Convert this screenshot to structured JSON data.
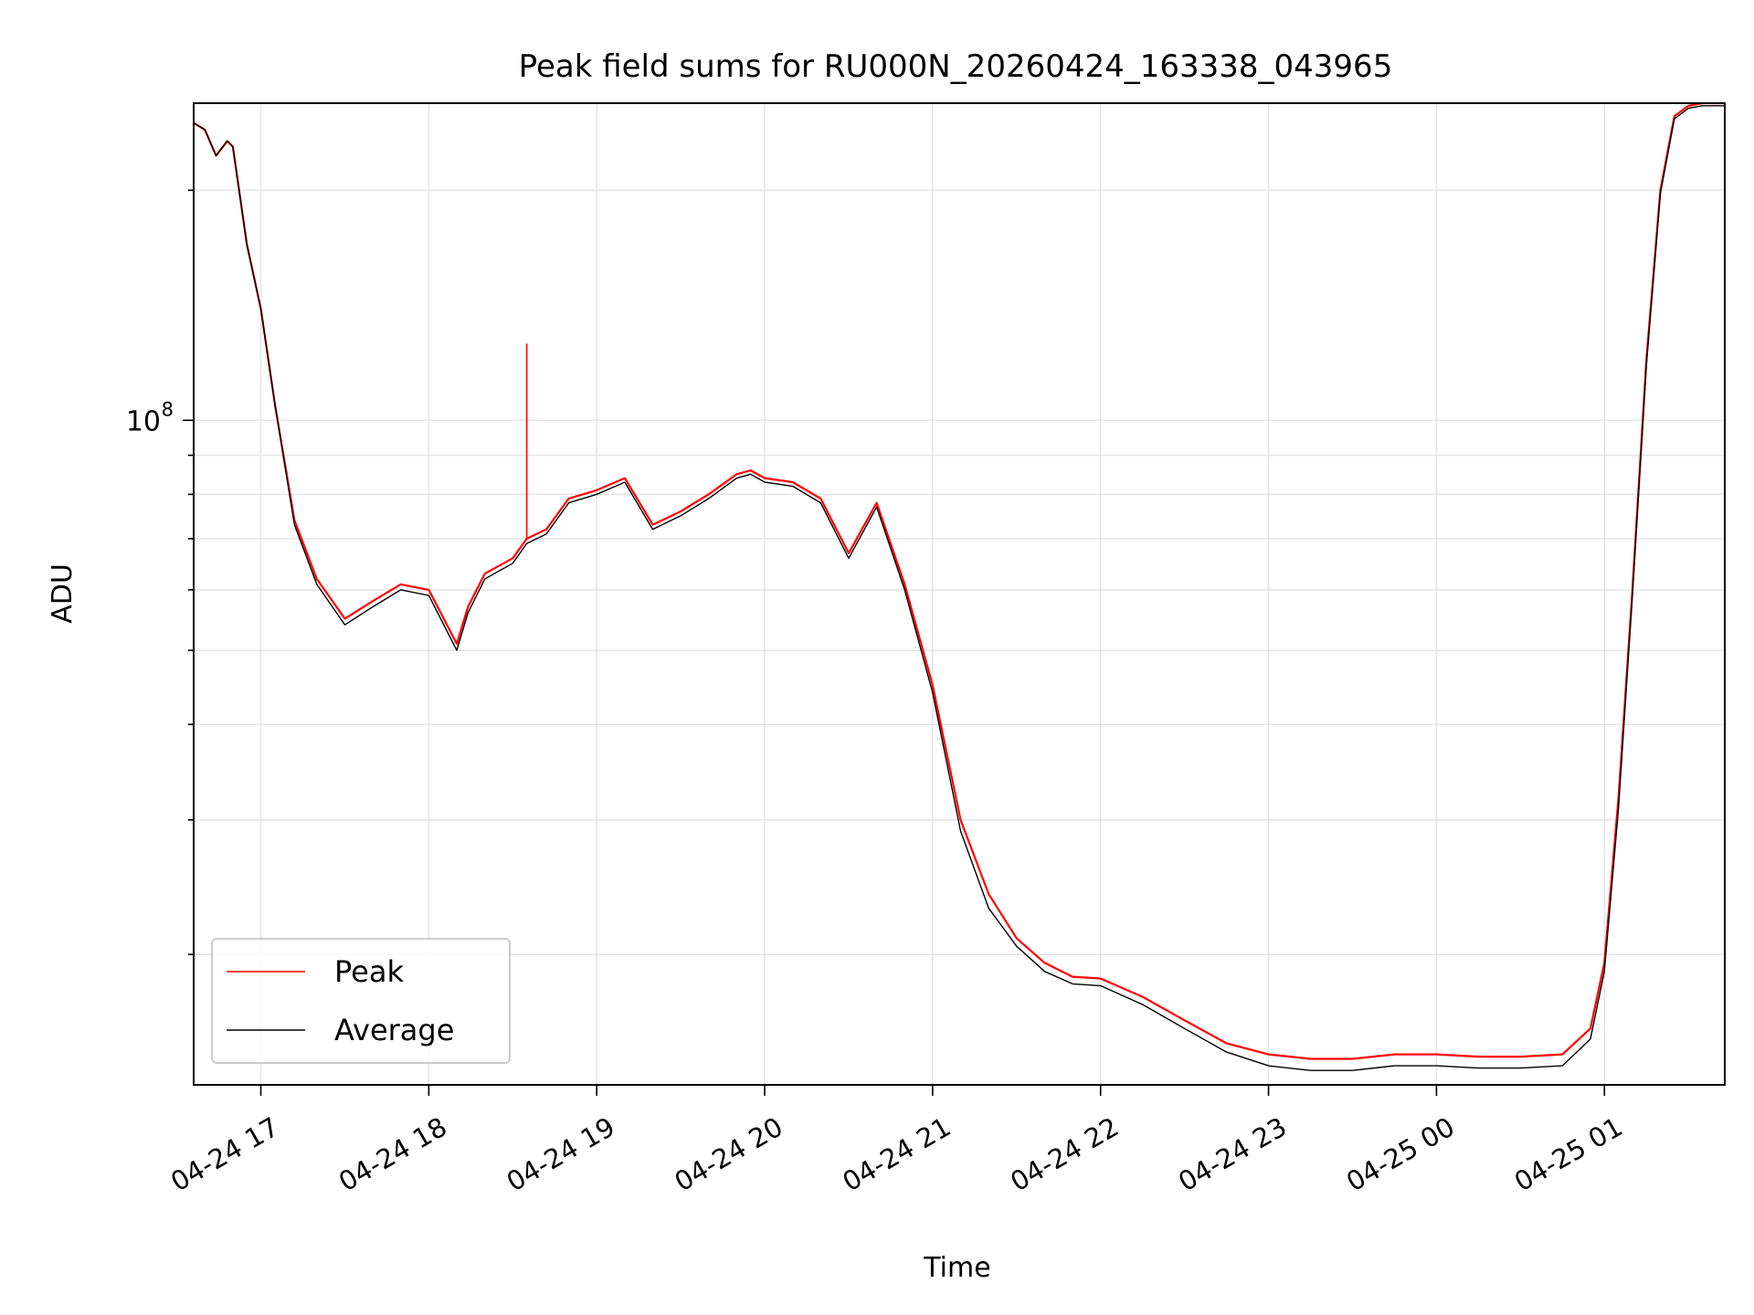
{
  "chart_data": {
    "type": "line",
    "title": "Peak field sums for RU000N_20260424_163338_043965",
    "xlabel": "Time",
    "ylabel": "ADU",
    "y_scale": "log",
    "xlim": [
      "2026-04-24 16:36",
      "2026-04-25 01:43"
    ],
    "ylim": [
      13500000,
      260000000
    ],
    "grid": true,
    "legend_position": "lower left",
    "x_ticks": [
      "04-24 17",
      "04-24 18",
      "04-24 19",
      "04-24 20",
      "04-24 21",
      "04-24 22",
      "04-24 23",
      "04-25 00",
      "04-25 01"
    ],
    "y_tick_labels": [
      {
        "value": 100000000,
        "base": "10",
        "exponent": "8"
      }
    ],
    "x": [
      "2026-04-24 16:36",
      "2026-04-24 16:40",
      "2026-04-24 16:44",
      "2026-04-24 16:48",
      "2026-04-24 16:50",
      "2026-04-24 16:55",
      "2026-04-24 17:00",
      "2026-04-24 17:05",
      "2026-04-24 17:12",
      "2026-04-24 17:20",
      "2026-04-24 17:30",
      "2026-04-24 17:40",
      "2026-04-24 17:50",
      "2026-04-24 18:00",
      "2026-04-24 18:10",
      "2026-04-24 18:14",
      "2026-04-24 18:20",
      "2026-04-24 18:30",
      "2026-04-24 18:35",
      "2026-04-24 18:42",
      "2026-04-24 18:50",
      "2026-04-24 19:00",
      "2026-04-24 19:10",
      "2026-04-24 19:20",
      "2026-04-24 19:30",
      "2026-04-24 19:40",
      "2026-04-24 19:50",
      "2026-04-24 19:55",
      "2026-04-24 20:00",
      "2026-04-24 20:10",
      "2026-04-24 20:20",
      "2026-04-24 20:30",
      "2026-04-24 20:40",
      "2026-04-24 20:50",
      "2026-04-24 21:00",
      "2026-04-24 21:10",
      "2026-04-24 21:20",
      "2026-04-24 21:30",
      "2026-04-24 21:40",
      "2026-04-24 21:50",
      "2026-04-24 22:00",
      "2026-04-24 22:15",
      "2026-04-24 22:30",
      "2026-04-24 22:45",
      "2026-04-24 23:00",
      "2026-04-24 23:15",
      "2026-04-24 23:30",
      "2026-04-24 23:45",
      "2026-04-25 00:00",
      "2026-04-25 00:15",
      "2026-04-25 00:30",
      "2026-04-25 00:45",
      "2026-04-25 00:55",
      "2026-04-25 01:00",
      "2026-04-25 01:05",
      "2026-04-25 01:10",
      "2026-04-25 01:15",
      "2026-04-25 01:20",
      "2026-04-25 01:25",
      "2026-04-25 01:30",
      "2026-04-25 01:35",
      "2026-04-25 01:40",
      "2026-04-25 01:43"
    ],
    "series": [
      {
        "name": "Peak",
        "color": "#ff0000",
        "values": [
          245000000,
          240000000,
          222000000,
          232000000,
          228000000,
          170000000,
          140000000,
          105000000,
          74000000,
          62000000,
          55000000,
          58000000,
          61000000,
          60000000,
          51000000,
          57000000,
          63000000,
          66000000,
          70000000,
          72000000,
          79000000,
          81000000,
          84000000,
          73000000,
          76000000,
          80000000,
          85000000,
          86000000,
          84000000,
          83000000,
          79000000,
          67000000,
          78000000,
          61000000,
          45000000,
          30000000,
          24000000,
          21000000,
          19500000,
          18700000,
          18600000,
          17600000,
          16400000,
          15300000,
          14800000,
          14600000,
          14600000,
          14800000,
          14800000,
          14700000,
          14700000,
          14800000,
          16000000,
          19500000,
          32000000,
          60000000,
          120000000,
          200000000,
          250000000,
          258000000,
          260000000,
          260000000,
          260000000
        ],
        "spike": {
          "x": "2026-04-24 18:35",
          "value": 126000000
        }
      },
      {
        "name": "Average",
        "color": "#000000",
        "values": [
          245000000,
          240000000,
          222000000,
          232000000,
          228000000,
          170000000,
          140000000,
          105000000,
          73000000,
          61000000,
          54000000,
          57000000,
          60000000,
          59000000,
          50000000,
          56000000,
          62000000,
          65000000,
          69000000,
          71000000,
          78000000,
          80000000,
          83000000,
          72000000,
          75000000,
          79000000,
          84000000,
          85000000,
          83000000,
          82000000,
          78000000,
          66000000,
          77000000,
          60000000,
          44000000,
          29000000,
          23000000,
          20500000,
          19000000,
          18300000,
          18200000,
          17200000,
          16000000,
          14900000,
          14300000,
          14100000,
          14100000,
          14300000,
          14300000,
          14200000,
          14200000,
          14300000,
          15500000,
          19000000,
          31000000,
          59000000,
          118000000,
          198000000,
          248000000,
          256000000,
          258000000,
          258000000,
          258000000
        ]
      }
    ]
  }
}
